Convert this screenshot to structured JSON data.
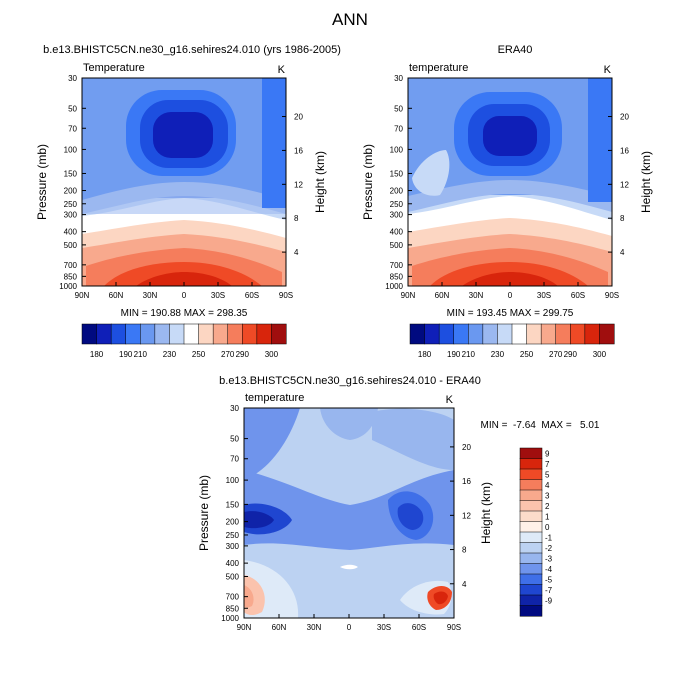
{
  "page_title": "ANN",
  "chart_data": [
    {
      "type": "heatmap",
      "title": "b.e13.BHISTC5CN.ne30_g16.sehires24.010 (yrs 1986-2005)",
      "left_title": "Temperature",
      "right_title": "K",
      "xlabel": "",
      "ylabel": "Pressure (mb)",
      "y2label": "Height (km)",
      "x_ticks": [
        "90N",
        "60N",
        "30N",
        "0",
        "30S",
        "60S",
        "90S"
      ],
      "y_ticks": [
        "30",
        "50",
        "70",
        "100",
        "150",
        "200",
        "250",
        "300",
        "400",
        "500",
        "700",
        "850",
        "1000"
      ],
      "y2_ticks": [
        "20",
        "16",
        "12",
        "8",
        "4"
      ],
      "y_scale": "log",
      "ylim": [
        1000,
        30
      ],
      "stats": "MIN = 190.88  MAX = 298.35",
      "colorbar": {
        "orientation": "horizontal",
        "levels": [
          180,
          190,
          200,
          210,
          220,
          230,
          240,
          250,
          260,
          270,
          280,
          290,
          300
        ],
        "labels": [
          "180",
          "190",
          "210",
          "230",
          "250",
          "270",
          "290",
          "300"
        ],
        "colors": [
          "#000a80",
          "#0f1fb8",
          "#1d4fe0",
          "#3a78f5",
          "#6a98f0",
          "#9bb8f0",
          "#c7daf7",
          "#ffffff",
          "#fcd6c2",
          "#f8a98d",
          "#f57d5c",
          "#ef4a26",
          "#d8250c",
          "#a00e0e"
        ]
      }
    },
    {
      "type": "heatmap",
      "title": "ERA40",
      "left_title": "temperature",
      "right_title": "K",
      "xlabel": "",
      "ylabel": "Pressure (mb)",
      "y2label": "Height (km)",
      "x_ticks": [
        "90N",
        "60N",
        "30N",
        "0",
        "30S",
        "60S",
        "90S"
      ],
      "y_ticks": [
        "30",
        "50",
        "70",
        "100",
        "150",
        "200",
        "250",
        "300",
        "400",
        "500",
        "700",
        "850",
        "1000"
      ],
      "y2_ticks": [
        "20",
        "16",
        "12",
        "8",
        "4"
      ],
      "y_scale": "log",
      "ylim": [
        1000,
        30
      ],
      "stats": "MIN = 193.45  MAX = 299.75",
      "colorbar": {
        "orientation": "horizontal",
        "levels": [
          180,
          190,
          200,
          210,
          220,
          230,
          240,
          250,
          260,
          270,
          280,
          290,
          300
        ],
        "labels": [
          "180",
          "190",
          "210",
          "230",
          "250",
          "270",
          "290",
          "300"
        ],
        "colors": [
          "#000a80",
          "#0f1fb8",
          "#1d4fe0",
          "#3a78f5",
          "#6a98f0",
          "#9bb8f0",
          "#c7daf7",
          "#ffffff",
          "#fcd6c2",
          "#f8a98d",
          "#f57d5c",
          "#ef4a26",
          "#d8250c",
          "#a00e0e"
        ]
      }
    },
    {
      "type": "heatmap",
      "title": "b.e13.BHISTC5CN.ne30_g16.sehires24.010 - ERA40",
      "left_title": "temperature",
      "right_title": "K",
      "xlabel": "",
      "ylabel": "Pressure (mb)",
      "y2label": "Height (km)",
      "x_ticks": [
        "90N",
        "60N",
        "30N",
        "0",
        "30S",
        "60S",
        "90S"
      ],
      "y_ticks": [
        "30",
        "50",
        "70",
        "100",
        "150",
        "200",
        "250",
        "300",
        "400",
        "500",
        "700",
        "850",
        "1000"
      ],
      "y2_ticks": [
        "20",
        "16",
        "12",
        "8",
        "4"
      ],
      "y_scale": "log",
      "ylim": [
        1000,
        30
      ],
      "stats": "MIN =  -7.64  MAX =   5.01",
      "colorbar": {
        "orientation": "vertical",
        "labels": [
          "9",
          "7",
          "5",
          "4",
          "3",
          "2",
          "1",
          "0",
          "-1",
          "-2",
          "-3",
          "-4",
          "-5",
          "-7",
          "-9"
        ],
        "colors": [
          "#a00e0e",
          "#d8250c",
          "#ef4a26",
          "#f57d5c",
          "#f8a98d",
          "#fbc3ad",
          "#fcdcca",
          "#fff1e8",
          "#deeaf8",
          "#bcd2f2",
          "#98b6ee",
          "#6f94ec",
          "#3f6fe8",
          "#1f46d0",
          "#0f23a8",
          "#000a80"
        ]
      }
    }
  ]
}
